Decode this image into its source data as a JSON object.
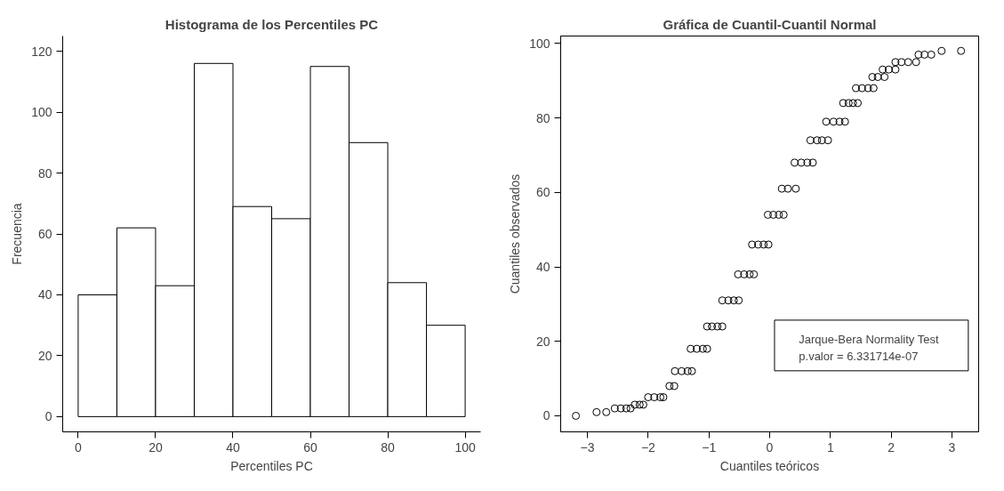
{
  "chart_data": [
    {
      "type": "histogram",
      "title": "Histograma de los Percentiles PC",
      "xlabel": "Percentiles PC",
      "ylabel": "Frecuencia",
      "bins": [
        0,
        10,
        20,
        30,
        40,
        50,
        60,
        70,
        80,
        90,
        100
      ],
      "values": [
        40,
        62,
        43,
        116,
        69,
        65,
        115,
        90,
        44,
        30
      ],
      "color": "#ffffff",
      "xlim": [
        -4,
        104
      ],
      "ylim": [
        -5,
        125
      ],
      "xticks": [
        0,
        20,
        40,
        60,
        80,
        100
      ],
      "yticks": [
        0,
        20,
        40,
        60,
        80,
        100,
        120
      ],
      "grid": false
    },
    {
      "type": "scatter",
      "title": "Gráfica de Cuantil-Cuantil Normal",
      "xlabel": "Cuantiles teóricos",
      "ylabel": "Cuantiles observados",
      "x": [
        -3.19,
        -2.85,
        -2.69,
        -2.55,
        -2.45,
        -2.36,
        -2.29,
        -2.22,
        -2.14,
        -2.08,
        -2.0,
        -1.9,
        -1.8,
        -1.75,
        -1.65,
        -1.57,
        -1.56,
        -1.45,
        -1.35,
        -1.28,
        -1.3,
        -1.2,
        -1.1,
        -1.03,
        -1.03,
        -0.95,
        -0.86,
        -0.78,
        -0.78,
        -0.68,
        -0.59,
        -0.51,
        -0.52,
        -0.42,
        -0.33,
        -0.26,
        -0.29,
        -0.19,
        -0.1,
        -0.02,
        -0.03,
        0.06,
        0.15,
        0.23,
        0.2,
        0.3,
        0.43,
        0.41,
        0.52,
        0.62,
        0.71,
        0.67,
        0.78,
        0.86,
        0.96,
        0.93,
        1.05,
        1.15,
        1.24,
        1.21,
        1.3,
        1.37,
        1.45,
        1.42,
        1.52,
        1.62,
        1.71,
        1.69,
        1.78,
        1.89,
        1.86,
        1.96,
        2.07,
        2.07,
        2.17,
        2.28,
        2.41,
        2.45,
        2.55,
        2.66,
        2.83,
        3.15
      ],
      "values": [
        0,
        1,
        1,
        2,
        2,
        2,
        2,
        3,
        3,
        3,
        5,
        5,
        5,
        5,
        8,
        8,
        12,
        12,
        12,
        12,
        18,
        18,
        18,
        18,
        24,
        24,
        24,
        24,
        31,
        31,
        31,
        31,
        38,
        38,
        38,
        38,
        46,
        46,
        46,
        46,
        54,
        54,
        54,
        54,
        61,
        61,
        61,
        68,
        68,
        68,
        68,
        74,
        74,
        74,
        74,
        79,
        79,
        79,
        79,
        84,
        84,
        84,
        84,
        88,
        88,
        88,
        88,
        91,
        91,
        91,
        93,
        93,
        93,
        95,
        95,
        95,
        95,
        97,
        97,
        97,
        98,
        98
      ],
      "color": "#000000",
      "marker": "circle",
      "xlim": [
        -3.44,
        3.44
      ],
      "ylim": [
        -4.3,
        102
      ],
      "xticks": [
        -3,
        -2,
        -1,
        0,
        1,
        2,
        3
      ],
      "yticks": [
        0,
        20,
        40,
        60,
        80,
        100
      ],
      "grid": false,
      "annotations": [
        "Jarque-Bera Normality Test",
        "p.valor = 6.331714e-07"
      ]
    }
  ]
}
